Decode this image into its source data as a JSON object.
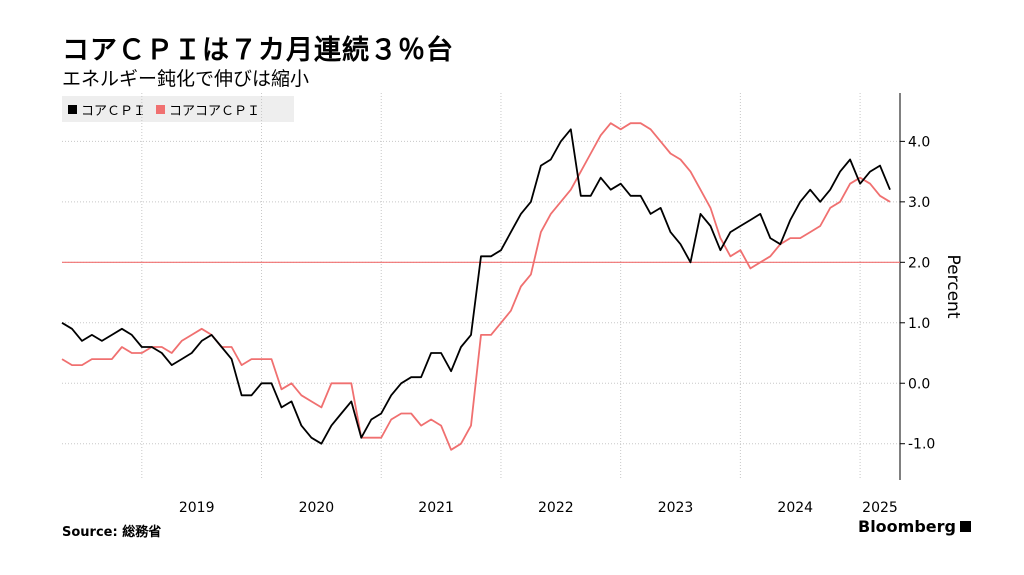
{
  "title": "コアＣＰＩは７カ月連続３％台",
  "subtitle": "エネルギー鈍化で伸びは縮小",
  "source": "Source: 総務省",
  "brand": "Bloomberg",
  "colors": {
    "core_cpi": "#000000",
    "core_core_cpi": "#f07070",
    "reference_line": "#f07070",
    "grid": "#c8c8c8"
  },
  "chart_data": {
    "type": "line",
    "x_unit": "month",
    "x_start": "2018-05",
    "x_end": "2025-05",
    "xticks": [
      "2019",
      "2020",
      "2021",
      "2022",
      "2023",
      "2024",
      "2025"
    ],
    "ylabel": "Percent",
    "ylim": [
      -1.6,
      4.8
    ],
    "yticks": [
      "-1.0",
      "0.0",
      "1.0",
      "2.0",
      "3.0",
      "4.0"
    ],
    "reference_line": 2.0,
    "grid": true,
    "legend_position": "top-left",
    "series": [
      {
        "name": "コアＣＰＩ",
        "dates": [
          "2018-05",
          "2018-06",
          "2018-07",
          "2018-08",
          "2018-09",
          "2018-10",
          "2018-11",
          "2018-12",
          "2019-01",
          "2019-02",
          "2019-03",
          "2019-04",
          "2019-05",
          "2019-06",
          "2019-07",
          "2019-08",
          "2019-09",
          "2019-10",
          "2019-11",
          "2019-12",
          "2020-01",
          "2020-02",
          "2020-03",
          "2020-04",
          "2020-05",
          "2020-06",
          "2020-07",
          "2020-08",
          "2020-09",
          "2020-10",
          "2020-11",
          "2020-12",
          "2021-01",
          "2021-02",
          "2021-03",
          "2021-04",
          "2021-05",
          "2021-06",
          "2021-07",
          "2021-08",
          "2021-09",
          "2021-10",
          "2021-11",
          "2021-12",
          "2022-01",
          "2022-02",
          "2022-03",
          "2022-04",
          "2022-05",
          "2022-06",
          "2022-07",
          "2022-08",
          "2022-09",
          "2022-10",
          "2022-11",
          "2022-12",
          "2023-01",
          "2023-02",
          "2023-03",
          "2023-04",
          "2023-05",
          "2023-06",
          "2023-07",
          "2023-08",
          "2023-09",
          "2023-10",
          "2023-11",
          "2023-12",
          "2024-01",
          "2024-02",
          "2024-03",
          "2024-04",
          "2024-05",
          "2024-06",
          "2024-07",
          "2024-08",
          "2024-09",
          "2024-10",
          "2024-11",
          "2024-12",
          "2025-01",
          "2025-02",
          "2025-03",
          "2025-04"
        ],
        "values": [
          1.0,
          0.9,
          0.7,
          0.8,
          0.7,
          0.8,
          0.9,
          0.8,
          0.6,
          0.6,
          0.5,
          0.3,
          0.4,
          0.5,
          0.7,
          0.8,
          0.6,
          0.4,
          -0.2,
          -0.2,
          0.0,
          0.0,
          -0.4,
          -0.3,
          -0.7,
          -0.9,
          -1.0,
          -0.7,
          -0.5,
          -0.3,
          -0.9,
          -0.6,
          -0.5,
          -0.2,
          0.0,
          0.1,
          0.1,
          0.5,
          0.5,
          0.2,
          0.6,
          0.8,
          2.1,
          2.1,
          2.2,
          2.5,
          2.8,
          3.0,
          3.6,
          3.7,
          4.0,
          4.2,
          3.1,
          3.1,
          3.4,
          3.2,
          3.3,
          3.1,
          3.1,
          2.8,
          2.9,
          2.5,
          2.3,
          2.0,
          2.8,
          2.6,
          2.2,
          2.5,
          2.6,
          2.7,
          2.8,
          2.4,
          2.3,
          2.7,
          3.0,
          3.2,
          3.0,
          3.2,
          3.5,
          3.7,
          3.3,
          3.5,
          3.6,
          3.2
        ],
        "values_note": ""
      },
      {
        "name": "コアコアＣＰＩ",
        "dates": [
          "2018-05",
          "2018-06",
          "2018-07",
          "2018-08",
          "2018-09",
          "2018-10",
          "2018-11",
          "2018-12",
          "2019-01",
          "2019-02",
          "2019-03",
          "2019-04",
          "2019-05",
          "2019-06",
          "2019-07",
          "2019-08",
          "2019-09",
          "2019-10",
          "2019-11",
          "2019-12",
          "2020-01",
          "2020-02",
          "2020-03",
          "2020-04",
          "2020-05",
          "2020-06",
          "2020-07",
          "2020-08",
          "2020-09",
          "2020-10",
          "2020-11",
          "2020-12",
          "2021-01",
          "2021-02",
          "2021-03",
          "2021-04",
          "2021-05",
          "2021-06",
          "2021-07",
          "2021-08",
          "2021-09",
          "2021-10",
          "2021-11",
          "2021-12",
          "2022-01",
          "2022-02",
          "2022-03",
          "2022-04",
          "2022-05",
          "2022-06",
          "2022-07",
          "2022-08",
          "2022-09",
          "2022-10",
          "2022-11",
          "2022-12",
          "2023-01",
          "2023-02",
          "2023-03",
          "2023-04",
          "2023-05",
          "2023-06",
          "2023-07",
          "2023-08",
          "2023-09",
          "2023-10",
          "2023-11",
          "2023-12",
          "2024-01",
          "2024-02",
          "2024-03",
          "2024-04",
          "2024-05",
          "2024-06",
          "2024-07",
          "2024-08",
          "2024-09",
          "2024-10",
          "2024-11",
          "2024-12",
          "2025-01",
          "2025-02",
          "2025-03",
          "2025-04"
        ],
        "values": [
          0.4,
          0.3,
          0.3,
          0.4,
          0.4,
          0.4,
          0.6,
          0.5,
          0.5,
          0.6,
          0.6,
          0.5,
          0.7,
          0.8,
          0.9,
          0.8,
          0.6,
          0.6,
          0.3,
          0.4,
          0.4,
          0.4,
          -0.1,
          0.0,
          -0.2,
          -0.3,
          -0.4,
          0.0,
          0.0,
          0.0,
          -0.9,
          -0.9,
          -0.9,
          -0.6,
          -0.5,
          -0.5,
          -0.7,
          -0.6,
          -0.7,
          -1.1,
          -1.0,
          -0.7,
          0.8,
          0.8,
          1.0,
          1.2,
          1.6,
          1.8,
          2.5,
          2.8,
          3.0,
          3.2,
          3.5,
          3.8,
          4.1,
          4.3,
          4.2,
          4.3,
          4.3,
          4.2,
          4.0,
          3.8,
          3.7,
          3.5,
          3.2,
          2.9,
          2.4,
          2.1,
          2.2,
          1.9,
          2.0,
          2.1,
          2.3,
          2.4,
          2.4,
          2.5,
          2.6,
          2.9,
          3.0,
          3.3,
          3.4,
          3.3,
          3.1,
          3.0
        ],
        "values_note": ""
      }
    ]
  }
}
